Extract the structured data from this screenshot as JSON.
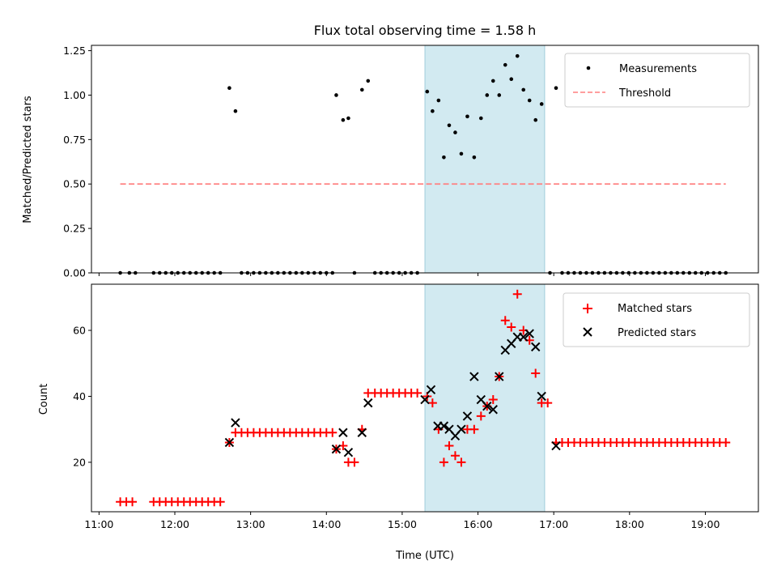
{
  "chart_data": {
    "title": "Flux total observing time = 1.58 h",
    "xlabel": "Time (UTC)",
    "x_ticks": [
      "11:00",
      "12:00",
      "13:00",
      "14:00",
      "15:00",
      "16:00",
      "17:00",
      "18:00",
      "19:00"
    ],
    "x_tick_values": [
      11,
      12,
      13,
      14,
      15,
      16,
      17,
      18,
      19
    ],
    "xlim": [
      10.9,
      19.7
    ],
    "highlight_span": {
      "x0": 15.3,
      "x1": 16.88,
      "color": "#add8e6"
    },
    "panels": [
      {
        "type": "scatter",
        "ylabel": "Matched/Predicted stars",
        "ylim": [
          0,
          1.28
        ],
        "y_ticks": [
          "0.00",
          "0.25",
          "0.50",
          "0.75",
          "1.00",
          "1.25"
        ],
        "y_tick_values": [
          0,
          0.25,
          0.5,
          0.75,
          1.0,
          1.25
        ],
        "legend_position": "top-right",
        "series": [
          {
            "name": "Measurements",
            "kind": "dots",
            "color": "#000000",
            "points": [
              [
                11.28,
                0
              ],
              [
                11.4,
                0
              ],
              [
                11.48,
                0
              ],
              [
                11.72,
                0
              ],
              [
                11.8,
                0
              ],
              [
                11.88,
                0
              ],
              [
                11.96,
                0
              ],
              [
                12.04,
                0
              ],
              [
                12.12,
                0
              ],
              [
                12.2,
                0
              ],
              [
                12.28,
                0
              ],
              [
                12.36,
                0
              ],
              [
                12.44,
                0
              ],
              [
                12.52,
                0
              ],
              [
                12.6,
                0
              ],
              [
                12.72,
                1.04
              ],
              [
                12.8,
                0.91
              ],
              [
                12.88,
                0
              ],
              [
                12.96,
                0
              ],
              [
                13.04,
                0
              ],
              [
                13.12,
                0
              ],
              [
                13.2,
                0
              ],
              [
                13.28,
                0
              ],
              [
                13.36,
                0
              ],
              [
                13.44,
                0
              ],
              [
                13.52,
                0
              ],
              [
                13.6,
                0
              ],
              [
                13.68,
                0
              ],
              [
                13.76,
                0
              ],
              [
                13.84,
                0
              ],
              [
                13.92,
                0
              ],
              [
                14.0,
                0
              ],
              [
                14.08,
                0
              ],
              [
                14.13,
                1.0
              ],
              [
                14.22,
                0.86
              ],
              [
                14.29,
                0.87
              ],
              [
                14.37,
                0
              ],
              [
                14.47,
                1.03
              ],
              [
                14.55,
                1.08
              ],
              [
                14.64,
                0
              ],
              [
                14.72,
                0
              ],
              [
                14.8,
                0
              ],
              [
                14.88,
                0
              ],
              [
                14.96,
                0
              ],
              [
                15.04,
                0
              ],
              [
                15.12,
                0
              ],
              [
                15.2,
                0
              ],
              [
                15.33,
                1.02
              ],
              [
                15.4,
                0.91
              ],
              [
                15.48,
                0.97
              ],
              [
                15.55,
                0.65
              ],
              [
                15.62,
                0.83
              ],
              [
                15.7,
                0.79
              ],
              [
                15.78,
                0.67
              ],
              [
                15.86,
                0.88
              ],
              [
                15.95,
                0.65
              ],
              [
                16.04,
                0.87
              ],
              [
                16.12,
                1.0
              ],
              [
                16.2,
                1.08
              ],
              [
                16.28,
                1.0
              ],
              [
                16.36,
                1.17
              ],
              [
                16.44,
                1.09
              ],
              [
                16.52,
                1.22
              ],
              [
                16.6,
                1.03
              ],
              [
                16.68,
                0.97
              ],
              [
                16.76,
                0.86
              ],
              [
                16.84,
                0.95
              ],
              [
                16.95,
                0
              ],
              [
                17.03,
                1.04
              ],
              [
                17.11,
                0
              ],
              [
                17.19,
                0
              ],
              [
                17.27,
                0
              ],
              [
                17.35,
                0
              ],
              [
                17.43,
                0
              ],
              [
                17.51,
                0
              ],
              [
                17.59,
                0
              ],
              [
                17.67,
                0
              ],
              [
                17.75,
                0
              ],
              [
                17.83,
                0
              ],
              [
                17.91,
                0
              ],
              [
                17.99,
                0
              ],
              [
                18.07,
                0
              ],
              [
                18.15,
                0
              ],
              [
                18.23,
                0
              ],
              [
                18.31,
                0
              ],
              [
                18.39,
                0
              ],
              [
                18.47,
                0
              ],
              [
                18.55,
                0
              ],
              [
                18.63,
                0
              ],
              [
                18.71,
                0
              ],
              [
                18.79,
                0
              ],
              [
                18.87,
                0
              ],
              [
                18.95,
                0
              ],
              [
                19.03,
                0
              ],
              [
                19.11,
                0
              ],
              [
                19.19,
                0
              ],
              [
                19.27,
                0
              ]
            ]
          },
          {
            "name": "Threshold",
            "kind": "dashed-line",
            "color": "#ff7f7f",
            "points": [
              [
                11.28,
                0.5
              ],
              [
                19.27,
                0.5
              ]
            ]
          }
        ]
      },
      {
        "type": "scatter",
        "ylabel": "Count",
        "ylim": [
          5,
          74
        ],
        "y_ticks": [
          "20",
          "40",
          "60"
        ],
        "y_tick_values": [
          20,
          40,
          60
        ],
        "legend_position": "top-right",
        "series": [
          {
            "name": "Matched stars",
            "kind": "plus",
            "color": "#ff0000",
            "points": [
              [
                11.28,
                8
              ],
              [
                11.36,
                8
              ],
              [
                11.44,
                8
              ],
              [
                11.72,
                8
              ],
              [
                11.8,
                8
              ],
              [
                11.88,
                8
              ],
              [
                11.96,
                8
              ],
              [
                12.04,
                8
              ],
              [
                12.12,
                8
              ],
              [
                12.2,
                8
              ],
              [
                12.28,
                8
              ],
              [
                12.36,
                8
              ],
              [
                12.44,
                8
              ],
              [
                12.52,
                8
              ],
              [
                12.6,
                8
              ],
              [
                12.72,
                26
              ],
              [
                12.8,
                29
              ],
              [
                12.88,
                29
              ],
              [
                12.96,
                29
              ],
              [
                13.04,
                29
              ],
              [
                13.12,
                29
              ],
              [
                13.2,
                29
              ],
              [
                13.28,
                29
              ],
              [
                13.36,
                29
              ],
              [
                13.44,
                29
              ],
              [
                13.52,
                29
              ],
              [
                13.6,
                29
              ],
              [
                13.68,
                29
              ],
              [
                13.76,
                29
              ],
              [
                13.84,
                29
              ],
              [
                13.92,
                29
              ],
              [
                14.0,
                29
              ],
              [
                14.08,
                29
              ],
              [
                14.13,
                24
              ],
              [
                14.22,
                25
              ],
              [
                14.29,
                20
              ],
              [
                14.37,
                20
              ],
              [
                14.47,
                30
              ],
              [
                14.55,
                41
              ],
              [
                14.64,
                41
              ],
              [
                14.72,
                41
              ],
              [
                14.8,
                41
              ],
              [
                14.88,
                41
              ],
              [
                14.96,
                41
              ],
              [
                15.04,
                41
              ],
              [
                15.12,
                41
              ],
              [
                15.2,
                41
              ],
              [
                15.33,
                40
              ],
              [
                15.4,
                38
              ],
              [
                15.48,
                30
              ],
              [
                15.55,
                20
              ],
              [
                15.62,
                25
              ],
              [
                15.7,
                22
              ],
              [
                15.78,
                20
              ],
              [
                15.86,
                30
              ],
              [
                15.95,
                30
              ],
              [
                16.04,
                34
              ],
              [
                16.12,
                37
              ],
              [
                16.2,
                39
              ],
              [
                16.28,
                46
              ],
              [
                16.36,
                63
              ],
              [
                16.44,
                61
              ],
              [
                16.52,
                71
              ],
              [
                16.6,
                60
              ],
              [
                16.68,
                57
              ],
              [
                16.76,
                47
              ],
              [
                16.84,
                38
              ],
              [
                16.92,
                38
              ],
              [
                17.03,
                26
              ],
              [
                17.11,
                26
              ],
              [
                17.19,
                26
              ],
              [
                17.27,
                26
              ],
              [
                17.35,
                26
              ],
              [
                17.43,
                26
              ],
              [
                17.51,
                26
              ],
              [
                17.59,
                26
              ],
              [
                17.67,
                26
              ],
              [
                17.75,
                26
              ],
              [
                17.83,
                26
              ],
              [
                17.91,
                26
              ],
              [
                17.99,
                26
              ],
              [
                18.07,
                26
              ],
              [
                18.15,
                26
              ],
              [
                18.23,
                26
              ],
              [
                18.31,
                26
              ],
              [
                18.39,
                26
              ],
              [
                18.47,
                26
              ],
              [
                18.55,
                26
              ],
              [
                18.63,
                26
              ],
              [
                18.71,
                26
              ],
              [
                18.79,
                26
              ],
              [
                18.87,
                26
              ],
              [
                18.95,
                26
              ],
              [
                19.03,
                26
              ],
              [
                19.11,
                26
              ],
              [
                19.19,
                26
              ],
              [
                19.27,
                26
              ]
            ]
          },
          {
            "name": "Predicted stars",
            "kind": "cross",
            "color": "#000000",
            "points": [
              [
                12.72,
                26
              ],
              [
                12.8,
                32
              ],
              [
                14.13,
                24
              ],
              [
                14.22,
                29
              ],
              [
                14.29,
                23
              ],
              [
                14.47,
                29
              ],
              [
                14.55,
                38
              ],
              [
                15.3,
                39
              ],
              [
                15.38,
                42
              ],
              [
                15.47,
                31
              ],
              [
                15.55,
                31
              ],
              [
                15.62,
                30
              ],
              [
                15.7,
                28
              ],
              [
                15.78,
                30
              ],
              [
                15.86,
                34
              ],
              [
                15.95,
                46
              ],
              [
                16.04,
                39
              ],
              [
                16.12,
                37
              ],
              [
                16.2,
                36
              ],
              [
                16.28,
                46
              ],
              [
                16.36,
                54
              ],
              [
                16.44,
                56
              ],
              [
                16.52,
                58
              ],
              [
                16.6,
                58
              ],
              [
                16.68,
                59
              ],
              [
                16.76,
                55
              ],
              [
                16.84,
                40
              ],
              [
                17.03,
                25
              ]
            ]
          }
        ]
      }
    ]
  }
}
